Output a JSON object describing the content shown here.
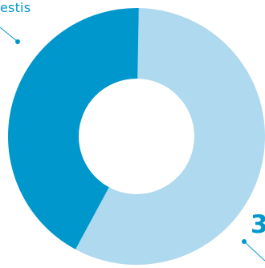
{
  "chart_data": {
    "type": "pie",
    "donut": true,
    "slices": [
      {
        "label": "estis",
        "value": 42.4,
        "color": "#0097cc"
      },
      {
        "label": "3",
        "value": 57.6,
        "color": "#afd9ee"
      }
    ]
  },
  "colors": {
    "center": "#ffffff",
    "leader": "#0097cc",
    "label_text": "#0097cc"
  }
}
